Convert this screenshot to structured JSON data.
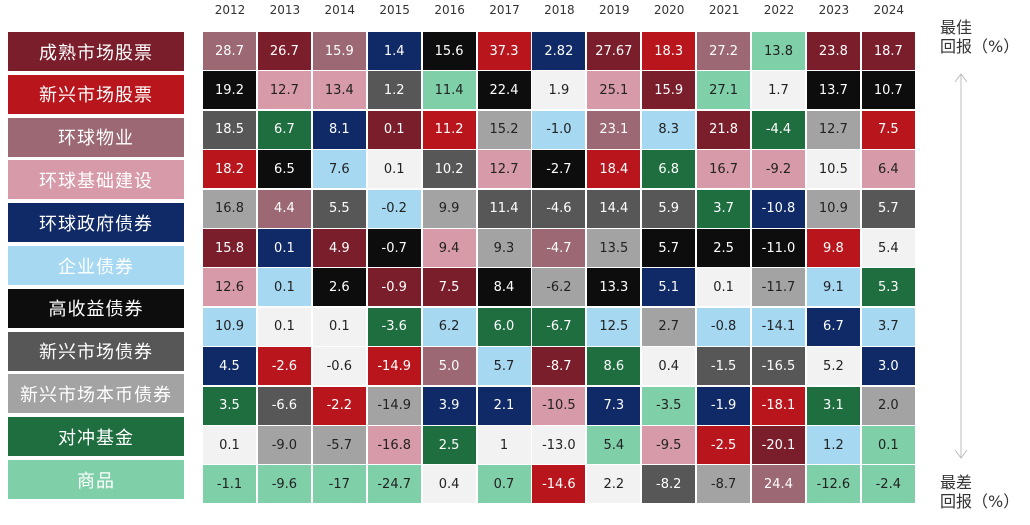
{
  "colors": {
    "成熟市场股票": "#7a1e2c",
    "新兴市场股票": "#b8161c",
    "环球物业": "#9c6874",
    "环球基础建设": "#d79aa8",
    "环球政府债券": "#0f2a66",
    "企业债券": "#a6d8f2",
    "高收益债券": "#0d0d0d",
    "新兴市场债券": "#575757",
    "新兴市场本币债券": "#a3a3a3",
    "对冲基金": "#1e6e3f",
    "商品": "#7fcfa9",
    "其他": "#f2f2f2"
  },
  "notes": {
    "best": "最佳\n回报（%）",
    "worst": "最差\n回报（%）"
  },
  "chart_data": {
    "type": "table",
    "title": "",
    "asset_classes": [
      "成熟市场股票",
      "新兴市场股票",
      "环球物业",
      "环球基础建设",
      "环球政府债券",
      "企业债券",
      "高收益债券",
      "新兴市场债券",
      "新兴市场本币债券",
      "对冲基金",
      "商品"
    ],
    "years": [
      "2012",
      "2013",
      "2014",
      "2015",
      "2016",
      "2017",
      "2018",
      "2019",
      "2020",
      "2021",
      "2022",
      "2023",
      "2024"
    ],
    "columns": [
      [
        {
          "v": "28.7",
          "a": "环球物业"
        },
        {
          "v": "19.2",
          "a": "高收益债券"
        },
        {
          "v": "18.5",
          "a": "新兴市场债券"
        },
        {
          "v": "18.2",
          "a": "新兴市场股票"
        },
        {
          "v": "16.8",
          "a": "新兴市场本币债券"
        },
        {
          "v": "15.8",
          "a": "成熟市场股票"
        },
        {
          "v": "12.6",
          "a": "环球基础建设"
        },
        {
          "v": "10.9",
          "a": "企业债券"
        },
        {
          "v": "4.5",
          "a": "环球政府债券"
        },
        {
          "v": "3.5",
          "a": "对冲基金"
        },
        {
          "v": "0.1",
          "a": "其他"
        },
        {
          "v": "-1.1",
          "a": "商品"
        }
      ],
      [
        {
          "v": "26.7",
          "a": "成熟市场股票"
        },
        {
          "v": "12.7",
          "a": "环球基础建设"
        },
        {
          "v": "6.7",
          "a": "对冲基金"
        },
        {
          "v": "6.5",
          "a": "高收益债券"
        },
        {
          "v": "4.4",
          "a": "环球物业"
        },
        {
          "v": "0.1",
          "a": "环球政府债券"
        },
        {
          "v": "0.1",
          "a": "企业债券"
        },
        {
          "v": "0.1",
          "a": "其他"
        },
        {
          "v": "-2.6",
          "a": "新兴市场股票"
        },
        {
          "v": "-6.6",
          "a": "新兴市场债券"
        },
        {
          "v": "-9.0",
          "a": "新兴市场本币债券"
        },
        {
          "v": "-9.6",
          "a": "商品"
        }
      ],
      [
        {
          "v": "15.9",
          "a": "环球物业"
        },
        {
          "v": "13.4",
          "a": "环球基础建设"
        },
        {
          "v": "8.1",
          "a": "环球政府债券"
        },
        {
          "v": "7.6",
          "a": "企业债券"
        },
        {
          "v": "5.5",
          "a": "新兴市场债券"
        },
        {
          "v": "4.9",
          "a": "成熟市场股票"
        },
        {
          "v": "2.6",
          "a": "高收益债券"
        },
        {
          "v": "0.1",
          "a": "其他"
        },
        {
          "v": "-0.6",
          "a": "其他"
        },
        {
          "v": "-2.2",
          "a": "新兴市场股票"
        },
        {
          "v": "-5.7",
          "a": "新兴市场本币债券"
        },
        {
          "v": "-17",
          "a": "商品"
        }
      ],
      [
        {
          "v": "1.4",
          "a": "环球政府债券"
        },
        {
          "v": "1.2",
          "a": "新兴市场债券"
        },
        {
          "v": "0.1",
          "a": "成熟市场股票"
        },
        {
          "v": "0.1",
          "a": "其他"
        },
        {
          "v": "-0.2",
          "a": "企业债券"
        },
        {
          "v": "-0.7",
          "a": "高收益债券"
        },
        {
          "v": "-0.9",
          "a": "成熟市场股票"
        },
        {
          "v": "-3.6",
          "a": "对冲基金"
        },
        {
          "v": "-14.9",
          "a": "新兴市场股票"
        },
        {
          "v": "-14.9",
          "a": "新兴市场本币债券"
        },
        {
          "v": "-16.8",
          "a": "环球基础建设"
        },
        {
          "v": "-24.7",
          "a": "商品"
        }
      ],
      [
        {
          "v": "15.6",
          "a": "高收益债券"
        },
        {
          "v": "11.4",
          "a": "商品"
        },
        {
          "v": "11.2",
          "a": "新兴市场股票"
        },
        {
          "v": "10.2",
          "a": "新兴市场债券"
        },
        {
          "v": "9.9",
          "a": "新兴市场本币债券"
        },
        {
          "v": "9.4",
          "a": "环球基础建设"
        },
        {
          "v": "7.5",
          "a": "成熟市场股票"
        },
        {
          "v": "6.2",
          "a": "企业债券"
        },
        {
          "v": "5.0",
          "a": "环球物业"
        },
        {
          "v": "3.9",
          "a": "环球政府债券"
        },
        {
          "v": "2.5",
          "a": "对冲基金"
        },
        {
          "v": "0.4",
          "a": "其他"
        }
      ],
      [
        {
          "v": "37.3",
          "a": "新兴市场股票"
        },
        {
          "v": "22.4",
          "a": "高收益债券"
        },
        {
          "v": "15.2",
          "a": "新兴市场本币债券"
        },
        {
          "v": "12.7",
          "a": "环球基础建设"
        },
        {
          "v": "11.4",
          "a": "新兴市场债券"
        },
        {
          "v": "9.3",
          "a": "新兴市场本币债券"
        },
        {
          "v": "8.4",
          "a": "高收益债券"
        },
        {
          "v": "6.0",
          "a": "对冲基金"
        },
        {
          "v": "5.7",
          "a": "企业债券"
        },
        {
          "v": "2.1",
          "a": "环球政府债券"
        },
        {
          "v": "1",
          "a": "其他"
        },
        {
          "v": "0.7",
          "a": "商品"
        }
      ],
      [
        {
          "v": "2.82",
          "a": "环球政府债券"
        },
        {
          "v": "1.9",
          "a": "其他"
        },
        {
          "v": "-1.0",
          "a": "企业债券"
        },
        {
          "v": "-2.7",
          "a": "高收益债券"
        },
        {
          "v": "-4.6",
          "a": "新兴市场债券"
        },
        {
          "v": "-4.7",
          "a": "环球物业"
        },
        {
          "v": "-6.2",
          "a": "新兴市场本币债券"
        },
        {
          "v": "-6.7",
          "a": "对冲基金"
        },
        {
          "v": "-8.7",
          "a": "成熟市场股票"
        },
        {
          "v": "-10.5",
          "a": "环球基础建设"
        },
        {
          "v": "-13.0",
          "a": "其他"
        },
        {
          "v": "-14.6",
          "a": "新兴市场股票"
        }
      ],
      [
        {
          "v": "27.67",
          "a": "成熟市场股票"
        },
        {
          "v": "25.1",
          "a": "环球基础建设"
        },
        {
          "v": "23.1",
          "a": "环球物业"
        },
        {
          "v": "18.4",
          "a": "新兴市场股票"
        },
        {
          "v": "14.4",
          "a": "新兴市场债券"
        },
        {
          "v": "13.5",
          "a": "新兴市场本币债券"
        },
        {
          "v": "13.3",
          "a": "高收益债券"
        },
        {
          "v": "12.5",
          "a": "企业债券"
        },
        {
          "v": "8.6",
          "a": "对冲基金"
        },
        {
          "v": "7.3",
          "a": "环球政府债券"
        },
        {
          "v": "5.4",
          "a": "商品"
        },
        {
          "v": "2.2",
          "a": "其他"
        }
      ],
      [
        {
          "v": "18.3",
          "a": "新兴市场股票"
        },
        {
          "v": "15.9",
          "a": "成熟市场股票"
        },
        {
          "v": "8.3",
          "a": "企业债券"
        },
        {
          "v": "6.8",
          "a": "对冲基金"
        },
        {
          "v": "5.9",
          "a": "新兴市场债券"
        },
        {
          "v": "5.7",
          "a": "高收益债券"
        },
        {
          "v": "5.1",
          "a": "环球政府债券"
        },
        {
          "v": "2.7",
          "a": "新兴市场本币债券"
        },
        {
          "v": "0.4",
          "a": "其他"
        },
        {
          "v": "-3.5",
          "a": "商品"
        },
        {
          "v": "-9.5",
          "a": "环球基础建设"
        },
        {
          "v": "-8.2",
          "a": "新兴市场债券"
        }
      ],
      [
        {
          "v": "27.2",
          "a": "环球物业"
        },
        {
          "v": "27.1",
          "a": "商品"
        },
        {
          "v": "21.8",
          "a": "成熟市场股票"
        },
        {
          "v": "16.7",
          "a": "环球基础建设"
        },
        {
          "v": "3.7",
          "a": "对冲基金"
        },
        {
          "v": "2.5",
          "a": "高收益债券"
        },
        {
          "v": "0.1",
          "a": "其他"
        },
        {
          "v": "-0.8",
          "a": "企业债券"
        },
        {
          "v": "-1.5",
          "a": "新兴市场债券"
        },
        {
          "v": "-1.9",
          "a": "环球政府债券"
        },
        {
          "v": "-2.5",
          "a": "新兴市场股票"
        },
        {
          "v": "-8.7",
          "a": "新兴市场本币债券"
        }
      ],
      [
        {
          "v": "13.8",
          "a": "商品"
        },
        {
          "v": "1.7",
          "a": "其他"
        },
        {
          "v": "-4.4",
          "a": "对冲基金"
        },
        {
          "v": "-9.2",
          "a": "环球基础建设"
        },
        {
          "v": "-10.8",
          "a": "环球政府债券"
        },
        {
          "v": "-11.0",
          "a": "高收益债券"
        },
        {
          "v": "-11.7",
          "a": "新兴市场本币债券"
        },
        {
          "v": "-14.1",
          "a": "企业债券"
        },
        {
          "v": "-16.5",
          "a": "新兴市场债券"
        },
        {
          "v": "-18.1",
          "a": "新兴市场股票"
        },
        {
          "v": "-20.1",
          "a": "成熟市场股票"
        },
        {
          "v": "24.4",
          "a": "环球物业"
        }
      ],
      [
        {
          "v": "23.8",
          "a": "成熟市场股票"
        },
        {
          "v": "13.7",
          "a": "高收益债券"
        },
        {
          "v": "12.7",
          "a": "新兴市场本币债券"
        },
        {
          "v": "10.5",
          "a": "其他"
        },
        {
          "v": "10.9",
          "a": "新兴市场本币债券"
        },
        {
          "v": "9.8",
          "a": "新兴市场股票"
        },
        {
          "v": "9.1",
          "a": "企业债券"
        },
        {
          "v": "6.7",
          "a": "环球政府债券"
        },
        {
          "v": "5.2",
          "a": "其他"
        },
        {
          "v": "3.1",
          "a": "对冲基金"
        },
        {
          "v": "1.2",
          "a": "企业债券"
        },
        {
          "v": "-12.6",
          "a": "商品"
        }
      ],
      [
        {
          "v": "18.7",
          "a": "成熟市场股票"
        },
        {
          "v": "10.7",
          "a": "高收益债券"
        },
        {
          "v": "7.5",
          "a": "新兴市场股票"
        },
        {
          "v": "6.4",
          "a": "环球基础建设"
        },
        {
          "v": "5.7",
          "a": "新兴市场债券"
        },
        {
          "v": "5.4",
          "a": "其他"
        },
        {
          "v": "5.3",
          "a": "对冲基金"
        },
        {
          "v": "3.7",
          "a": "企业债券"
        },
        {
          "v": "3.0",
          "a": "环球政府债券"
        },
        {
          "v": "2.0",
          "a": "新兴市场本币债券"
        },
        {
          "v": "0.1",
          "a": "商品"
        },
        {
          "v": "-2.4",
          "a": "商品"
        }
      ]
    ]
  }
}
